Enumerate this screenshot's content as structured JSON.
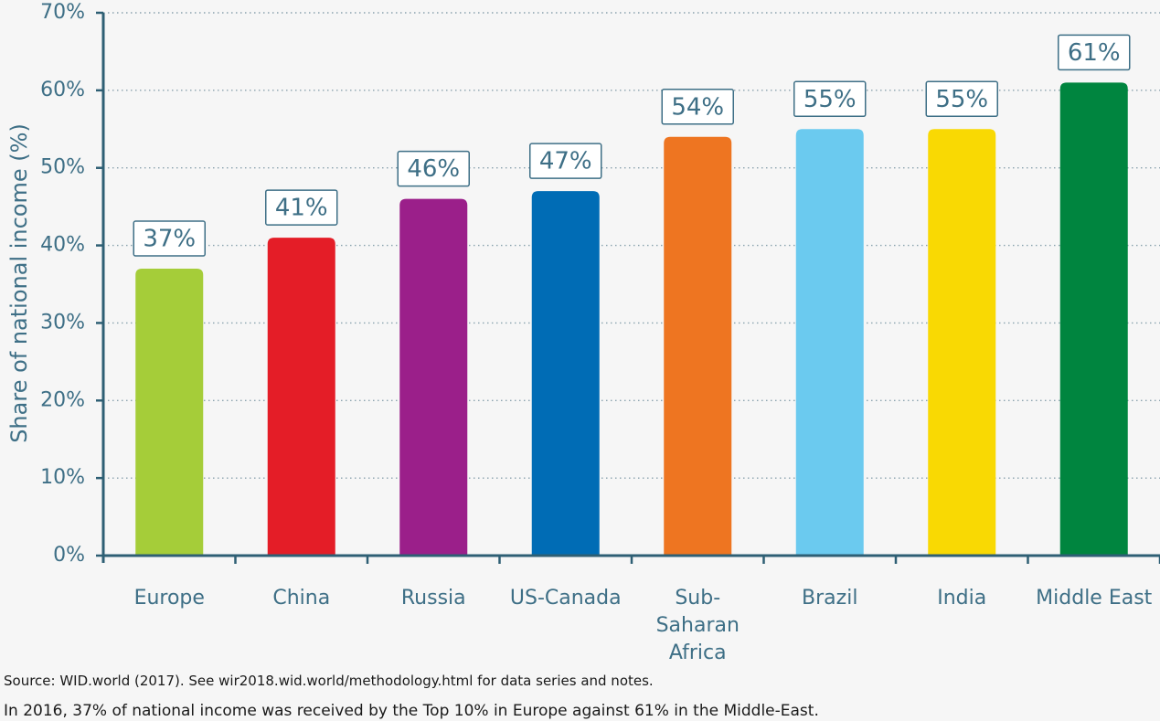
{
  "chart_data": {
    "type": "bar",
    "categories": [
      "Europe",
      "China",
      "Russia",
      "US-Canada",
      "Sub-Saharan Africa",
      "Brazil",
      "India",
      "Middle East"
    ],
    "category_lines": [
      [
        "Europe"
      ],
      [
        "China"
      ],
      [
        "Russia"
      ],
      [
        "US-Canada"
      ],
      [
        "Sub-",
        "Saharan",
        "Africa"
      ],
      [
        "Brazil"
      ],
      [
        "India"
      ],
      [
        "Middle East"
      ]
    ],
    "values": [
      37,
      41,
      46,
      47,
      54,
      55,
      55,
      61
    ],
    "data_labels": [
      "37%",
      "41%",
      "46%",
      "47%",
      "54%",
      "55%",
      "55%",
      "61%"
    ],
    "colors": [
      "#a5cd39",
      "#e41d27",
      "#9b1f8a",
      "#006cb5",
      "#ee7521",
      "#6bcaef",
      "#f9d903",
      "#00853f"
    ],
    "ylabel": "Share of national income (%)",
    "ylim": [
      0,
      70
    ],
    "yticks": [
      0,
      10,
      20,
      30,
      40,
      50,
      60,
      70
    ],
    "ytick_labels": [
      "0%",
      "10%",
      "20%",
      "30%",
      "40%",
      "50%",
      "60%",
      "70%"
    ],
    "grid": true,
    "axis_color": "#2e5f74",
    "grid_color": "#8aa2ae"
  },
  "footnotes": {
    "source": "Source: WID.world (2017). See wir2018.wid.world/methodology.html for data series and notes.",
    "caption": "In 2016, 37% of national income was received by the Top 10% in Europe against 61% in the Middle-East."
  }
}
